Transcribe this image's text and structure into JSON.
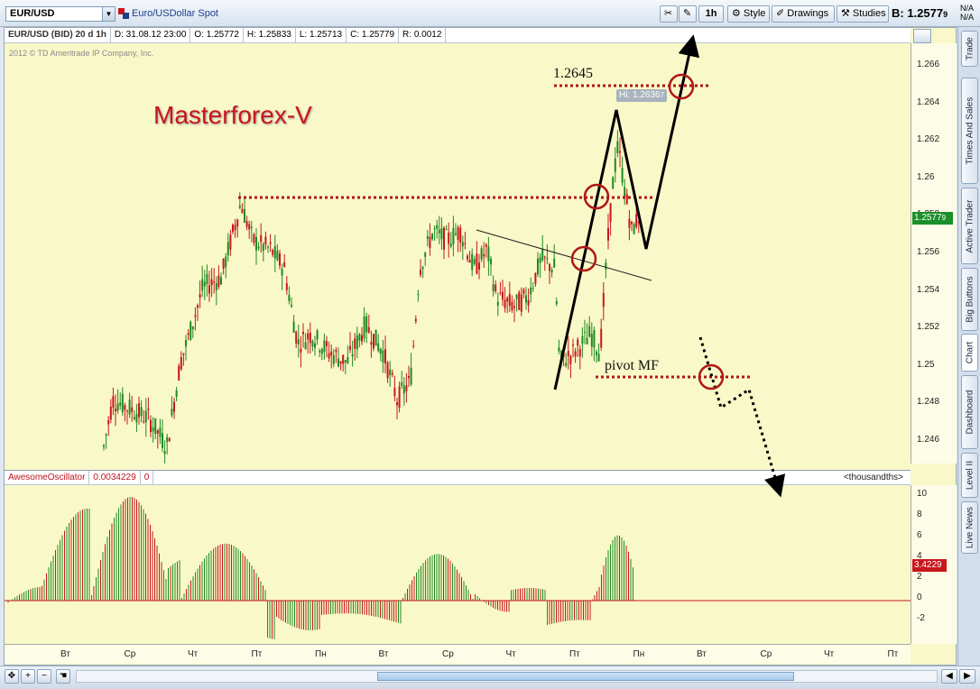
{
  "toolbar": {
    "symbol": "EUR/USD",
    "description": "Euro/USDollar Spot",
    "period_btn": "1h",
    "style_btn": "Style",
    "drawings_btn": "Drawings",
    "studies_btn": "Studies",
    "bid_label": "B: 1.2577",
    "bid_suffix": "9",
    "na_top": "N/A",
    "na_bottom": "N/A"
  },
  "info_bar": {
    "symbol": "EUR/USD (BID) 20 d 1h",
    "date": "D: 31.08.12 23:00",
    "open": "O: 1.25772",
    "high": "H: 1.25833",
    "low": "L: 1.25713",
    "close": "C: 1.25779",
    "range": "R: 0.0012"
  },
  "copyright": "2012 © TD Ameritrade IP Company, Inc.",
  "price_axis": {
    "ticks": [
      "1.266",
      "1.264",
      "1.262",
      "1.26",
      "1.258",
      "1.256",
      "1.254",
      "1.252",
      "1.25",
      "1.248",
      "1.246"
    ],
    "current_price": "1.2577",
    "current_suffix": "9"
  },
  "annotations": {
    "title": "Masterforex-V",
    "level_label": "1.2645",
    "pivot_label": "pivot MF",
    "hi_label": "Hi: 1.2636",
    "hi_suffix": "7"
  },
  "oscillator": {
    "name": "AwesomeOscillator",
    "value": "0.0034229",
    "param": "0",
    "units": "<thousandths>",
    "ticks": [
      "10",
      "8",
      "6",
      "4",
      "2",
      "0",
      "-2"
    ],
    "current": "3.4229"
  },
  "time_axis": {
    "labels": [
      "Вт",
      "Ср",
      "Чт",
      "Пт",
      "Пн",
      "Вт",
      "Ср",
      "Чт",
      "Пт",
      "Пн",
      "Вт",
      "Ср",
      "Чт",
      "Пт"
    ]
  },
  "side_tabs": [
    "Trade",
    "Times And Sales",
    "Active Trader",
    "Big Buttons",
    "Chart",
    "Dashboard",
    "Level II",
    "Live News"
  ],
  "colors": {
    "up": "#1e8a22",
    "down": "#c8161d",
    "chart_bg": "#f9f8c8",
    "level_line": "#b01818"
  }
}
